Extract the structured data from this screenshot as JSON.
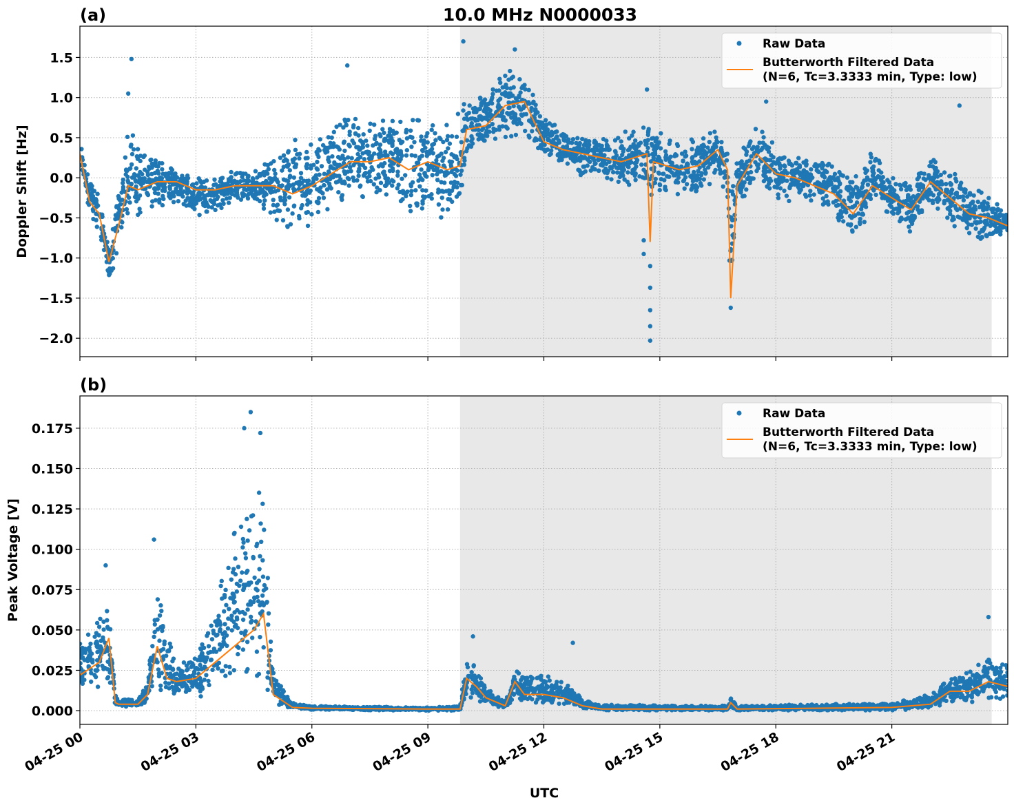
{
  "title": "10.0 MHz N0000033",
  "colors": {
    "raw": "#1f77b4",
    "filtered": "#ff7f0e",
    "shade": "#e8e8e8"
  },
  "chart_data": [
    {
      "type": "scatter",
      "panel_label": "(a)",
      "ylabel": "Doppler Shift [Hz]",
      "xlabel": "",
      "xlim": [
        "04-25 00:00",
        "04-26 00:00"
      ],
      "ylim": [
        -2.23,
        1.89
      ],
      "yticks": [
        "1.5",
        "1.0",
        "0.5",
        "0.0",
        "−0.5",
        "−1.0",
        "−1.5",
        "−2.0"
      ],
      "ytick_values": [
        1.5,
        1.0,
        0.5,
        0.0,
        -0.5,
        -1.0,
        -1.5,
        -2.0
      ],
      "grid": true,
      "shaded_interval": [
        "04-25 09:50",
        "04-25 23:35"
      ],
      "legend": {
        "placement": "top-right",
        "entries": [
          "Raw Data",
          "Butterworth Filtered Data",
          "(N=6, Tc=3.3333 min, Type: low)"
        ]
      },
      "series": [
        {
          "name": "Raw Data",
          "kind": "scatter-envelope",
          "columns": [
            "time",
            "filtered",
            "raw_low",
            "raw_high"
          ]
        },
        {
          "name": "Butterworth Filtered Data",
          "kind": "line"
        }
      ],
      "points": [
        [
          "04-25 00:00",
          0.3,
          0.0,
          0.55
        ],
        [
          "04-25 00:15",
          -0.3,
          -0.5,
          0.1
        ],
        [
          "04-25 00:30",
          -0.45,
          -0.7,
          -0.2
        ],
        [
          "04-25 00:45",
          -1.05,
          -1.3,
          -0.8
        ],
        [
          "04-25 01:00",
          -0.6,
          -1.0,
          0.0
        ],
        [
          "04-25 01:15",
          -0.1,
          -0.5,
          0.6
        ],
        [
          "04-25 01:30",
          -0.15,
          -0.5,
          0.5
        ],
        [
          "04-25 02:00",
          -0.05,
          -0.4,
          0.3
        ],
        [
          "04-25 02:30",
          -0.05,
          -0.3,
          0.1
        ],
        [
          "04-25 03:00",
          -0.15,
          -0.5,
          0.05
        ],
        [
          "04-25 03:30",
          -0.15,
          -0.45,
          0.05
        ],
        [
          "04-25 04:00",
          -0.1,
          -0.3,
          0.1
        ],
        [
          "04-25 04:30",
          -0.1,
          -0.3,
          0.1
        ],
        [
          "04-25 05:00",
          -0.1,
          -0.5,
          0.3
        ],
        [
          "04-25 05:30",
          -0.2,
          -0.8,
          0.5
        ],
        [
          "04-25 06:00",
          -0.1,
          -0.6,
          0.5
        ],
        [
          "04-25 06:30",
          0.05,
          -0.5,
          0.7
        ],
        [
          "04-25 07:00",
          0.2,
          -0.3,
          0.8
        ],
        [
          "04-25 07:30",
          0.2,
          -0.3,
          0.8
        ],
        [
          "04-25 08:00",
          0.25,
          -0.3,
          0.8
        ],
        [
          "04-25 08:30",
          0.1,
          -0.5,
          0.8
        ],
        [
          "04-25 09:00",
          0.2,
          -0.5,
          0.8
        ],
        [
          "04-25 09:30",
          0.1,
          -0.6,
          0.8
        ],
        [
          "04-25 09:50",
          0.15,
          -0.5,
          0.9
        ],
        [
          "04-25 10:00",
          0.6,
          0.3,
          1.0
        ],
        [
          "04-25 10:30",
          0.65,
          0.4,
          1.1
        ],
        [
          "04-25 11:00",
          0.9,
          0.4,
          1.4
        ],
        [
          "04-25 11:30",
          0.95,
          0.5,
          1.4
        ],
        [
          "04-25 12:00",
          0.45,
          0.2,
          0.8
        ],
        [
          "04-25 12:30",
          0.35,
          0.1,
          0.6
        ],
        [
          "04-25 13:00",
          0.3,
          0.0,
          0.6
        ],
        [
          "04-25 13:30",
          0.25,
          0.0,
          0.5
        ],
        [
          "04-25 14:00",
          0.2,
          -0.2,
          0.6
        ],
        [
          "04-25 14:40",
          0.3,
          -0.1,
          0.7
        ],
        [
          "04-25 14:45",
          -0.8,
          -0.3,
          0.6
        ],
        [
          "04-25 14:50",
          0.2,
          -0.2,
          0.6
        ],
        [
          "04-25 15:30",
          0.1,
          -0.3,
          0.5
        ],
        [
          "04-25 16:00",
          0.15,
          -0.2,
          0.5
        ],
        [
          "04-25 16:30",
          0.35,
          0.0,
          0.7
        ],
        [
          "04-25 16:45",
          0.1,
          -0.3,
          0.4
        ],
        [
          "04-25 16:50",
          -1.5,
          -1.6,
          0.2
        ],
        [
          "04-25 17:00",
          -0.1,
          -0.4,
          0.3
        ],
        [
          "04-25 17:30",
          0.3,
          -0.1,
          0.7
        ],
        [
          "04-25 18:00",
          0.05,
          -0.3,
          0.4
        ],
        [
          "04-25 18:30",
          0.0,
          -0.3,
          0.3
        ],
        [
          "04-25 19:00",
          -0.1,
          -0.4,
          0.3
        ],
        [
          "04-25 19:30",
          -0.2,
          -0.5,
          0.2
        ],
        [
          "04-25 20:00",
          -0.45,
          -0.8,
          0.0
        ],
        [
          "04-25 20:30",
          -0.1,
          -0.4,
          0.4
        ],
        [
          "04-25 21:00",
          -0.25,
          -0.5,
          0.0
        ],
        [
          "04-25 21:30",
          -0.4,
          -0.7,
          0.0
        ],
        [
          "04-25 22:00",
          -0.05,
          -0.4,
          0.3
        ],
        [
          "04-25 22:30",
          -0.25,
          -0.6,
          0.1
        ],
        [
          "04-25 23:00",
          -0.45,
          -0.8,
          0.0
        ],
        [
          "04-25 23:30",
          -0.5,
          -0.8,
          -0.2
        ],
        [
          "04-26 00:00",
          -0.6,
          -0.8,
          -0.4
        ]
      ],
      "outliers": [
        [
          "04-25 14:45",
          -2.03
        ],
        [
          "04-25 14:45",
          -1.85
        ],
        [
          "04-25 14:45",
          -1.65
        ],
        [
          "04-25 14:45",
          -1.37
        ],
        [
          "04-25 14:45",
          -1.1
        ],
        [
          "04-25 14:35",
          -0.95
        ],
        [
          "04-25 14:35",
          -0.78
        ],
        [
          "04-25 14:40",
          1.1
        ],
        [
          "04-25 16:50",
          -1.62
        ],
        [
          "04-25 01:20",
          1.48
        ],
        [
          "04-25 09:55",
          1.7
        ],
        [
          "04-25 22:45",
          0.9
        ],
        [
          "04-25 17:45",
          0.95
        ],
        [
          "04-25 11:15",
          1.6
        ],
        [
          "04-25 06:55",
          1.4
        ],
        [
          "04-25 01:15",
          1.05
        ]
      ]
    },
    {
      "type": "scatter",
      "panel_label": "(b)",
      "ylabel": "Peak Voltage [V]",
      "xlabel": "UTC",
      "xlim": [
        "04-25 00:00",
        "04-26 00:00"
      ],
      "ylim": [
        -0.0085,
        0.195
      ],
      "yticks": [
        "0.175",
        "0.150",
        "0.125",
        "0.100",
        "0.075",
        "0.050",
        "0.025",
        "0.000"
      ],
      "ytick_values": [
        0.175,
        0.15,
        0.125,
        0.1,
        0.075,
        0.05,
        0.025,
        0.0
      ],
      "xticks": [
        "04-25 00",
        "04-25 03",
        "04-25 06",
        "04-25 09",
        "04-25 12",
        "04-25 15",
        "04-25 18",
        "04-25 21"
      ],
      "xtick_values": [
        "04-25 00:00",
        "04-25 03:00",
        "04-25 06:00",
        "04-25 09:00",
        "04-25 12:00",
        "04-25 15:00",
        "04-25 18:00",
        "04-25 21:00"
      ],
      "grid": true,
      "shaded_interval": [
        "04-25 09:50",
        "04-25 23:35"
      ],
      "legend": {
        "placement": "top-right",
        "entries": [
          "Raw Data",
          "Butterworth Filtered Data",
          "(N=6, Tc=3.3333 min, Type: low)"
        ]
      },
      "series": [
        {
          "name": "Raw Data",
          "kind": "scatter-envelope",
          "columns": [
            "time",
            "filtered",
            "raw_low",
            "raw_high"
          ]
        },
        {
          "name": "Butterworth Filtered Data",
          "kind": "line"
        }
      ],
      "points": [
        [
          "04-25 00:00",
          0.022,
          0.01,
          0.045
        ],
        [
          "04-25 00:30",
          0.03,
          0.012,
          0.06
        ],
        [
          "04-25 00:45",
          0.045,
          0.015,
          0.075
        ],
        [
          "04-25 00:55",
          0.005,
          0.002,
          0.01
        ],
        [
          "04-25 01:00",
          0.004,
          0.002,
          0.007
        ],
        [
          "04-25 01:30",
          0.004,
          0.002,
          0.008
        ],
        [
          "04-25 01:45",
          0.01,
          0.004,
          0.02
        ],
        [
          "04-25 02:00",
          0.04,
          0.01,
          0.085
        ],
        [
          "04-25 02:15",
          0.02,
          0.006,
          0.05
        ],
        [
          "04-25 02:30",
          0.018,
          0.006,
          0.03
        ],
        [
          "04-25 03:00",
          0.02,
          0.006,
          0.035
        ],
        [
          "04-25 03:30",
          0.03,
          0.01,
          0.07
        ],
        [
          "04-25 04:00",
          0.04,
          0.012,
          0.12
        ],
        [
          "04-25 04:30",
          0.05,
          0.012,
          0.15
        ],
        [
          "04-25 04:45",
          0.06,
          0.015,
          0.15
        ],
        [
          "04-25 05:00",
          0.01,
          0.004,
          0.025
        ],
        [
          "04-25 05:30",
          0.002,
          0.001,
          0.005
        ],
        [
          "04-25 06:00",
          0.0015,
          0.0005,
          0.003
        ],
        [
          "04-25 09:00",
          0.001,
          0.0,
          0.002
        ],
        [
          "04-25 09:50",
          0.001,
          0.0,
          0.003
        ],
        [
          "04-25 10:00",
          0.02,
          0.008,
          0.035
        ],
        [
          "04-25 10:15",
          0.015,
          0.006,
          0.03
        ],
        [
          "04-25 10:30",
          0.008,
          0.004,
          0.015
        ],
        [
          "04-25 11:00",
          0.003,
          0.001,
          0.006
        ],
        [
          "04-25 11:15",
          0.018,
          0.006,
          0.03
        ],
        [
          "04-25 11:30",
          0.01,
          0.004,
          0.022
        ],
        [
          "04-25 12:00",
          0.01,
          0.003,
          0.022
        ],
        [
          "04-25 12:30",
          0.008,
          0.003,
          0.02
        ],
        [
          "04-25 13:00",
          0.003,
          0.001,
          0.008
        ],
        [
          "04-25 13:30",
          0.001,
          0.0,
          0.004
        ],
        [
          "04-25 16:45",
          0.001,
          0.0,
          0.003
        ],
        [
          "04-25 16:50",
          0.005,
          0.002,
          0.009
        ],
        [
          "04-25 17:00",
          0.001,
          0.0,
          0.003
        ],
        [
          "04-25 21:00",
          0.002,
          0.0,
          0.005
        ],
        [
          "04-25 22:00",
          0.004,
          0.001,
          0.01
        ],
        [
          "04-25 22:30",
          0.012,
          0.004,
          0.022
        ],
        [
          "04-25 23:00",
          0.012,
          0.004,
          0.025
        ],
        [
          "04-25 23:30",
          0.018,
          0.006,
          0.035
        ],
        [
          "04-26 00:00",
          0.015,
          0.005,
          0.03
        ]
      ],
      "outliers": [
        [
          "04-25 01:55",
          0.106
        ],
        [
          "04-25 04:25",
          0.185
        ],
        [
          "04-25 00:40",
          0.09
        ],
        [
          "04-25 12:45",
          0.042
        ],
        [
          "04-25 23:30",
          0.058
        ],
        [
          "04-25 04:15",
          0.175
        ],
        [
          "04-25 04:40",
          0.172
        ],
        [
          "04-25 10:10",
          0.046
        ]
      ]
    }
  ]
}
